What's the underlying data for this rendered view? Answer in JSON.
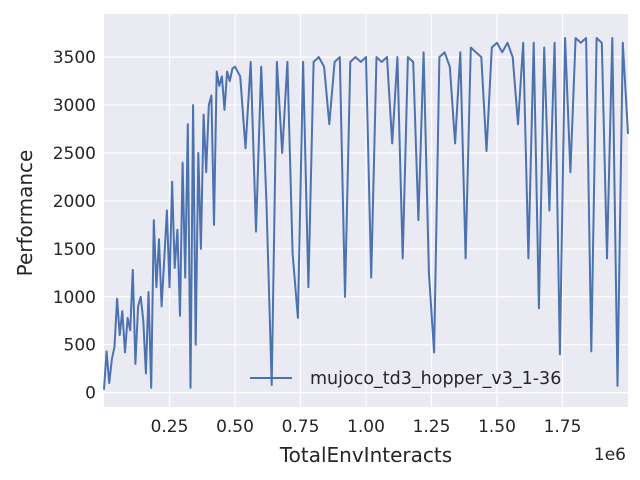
{
  "chart_data": {
    "type": "line",
    "xlabel": "TotalEnvInteracts",
    "ylabel": "Performance",
    "x_offset_text": "1e6",
    "xlim": [
      0,
      2000000
    ],
    "ylim": [
      -150,
      3950
    ],
    "x_ticks": [
      250000,
      500000,
      750000,
      1000000,
      1250000,
      1500000,
      1750000
    ],
    "x_tick_labels": [
      "0.25",
      "0.50",
      "0.75",
      "1.00",
      "1.25",
      "1.50",
      "1.75"
    ],
    "y_ticks": [
      0,
      500,
      1000,
      1500,
      2000,
      2500,
      3000,
      3500
    ],
    "y_tick_labels": [
      "0",
      "500",
      "1000",
      "1500",
      "2000",
      "2500",
      "3000",
      "3500"
    ],
    "grid": true,
    "legend_position": "lower-right",
    "colors": {
      "series": "#4c72b0",
      "plot_bg": "#eaeaf2",
      "grid": "#ffffff"
    },
    "series": [
      {
        "name": "mujoco_td3_hopper_v3_1-36",
        "x": [
          0,
          10000,
          20000,
          30000,
          40000,
          50000,
          60000,
          70000,
          80000,
          90000,
          100000,
          110000,
          120000,
          130000,
          140000,
          150000,
          160000,
          170000,
          180000,
          190000,
          200000,
          210000,
          220000,
          230000,
          240000,
          250000,
          260000,
          270000,
          280000,
          290000,
          300000,
          310000,
          320000,
          330000,
          340000,
          350000,
          360000,
          370000,
          380000,
          390000,
          400000,
          410000,
          420000,
          430000,
          440000,
          450000,
          460000,
          470000,
          480000,
          490000,
          500000,
          520000,
          540000,
          560000,
          580000,
          600000,
          620000,
          640000,
          660000,
          680000,
          700000,
          720000,
          740000,
          760000,
          780000,
          800000,
          820000,
          840000,
          860000,
          880000,
          900000,
          920000,
          940000,
          960000,
          980000,
          1000000,
          1020000,
          1040000,
          1060000,
          1080000,
          1100000,
          1120000,
          1140000,
          1160000,
          1180000,
          1200000,
          1220000,
          1240000,
          1260000,
          1280000,
          1300000,
          1320000,
          1340000,
          1360000,
          1380000,
          1400000,
          1420000,
          1440000,
          1460000,
          1480000,
          1500000,
          1520000,
          1540000,
          1560000,
          1580000,
          1600000,
          1620000,
          1640000,
          1660000,
          1680000,
          1700000,
          1720000,
          1740000,
          1760000,
          1780000,
          1800000,
          1820000,
          1840000,
          1860000,
          1880000,
          1900000,
          1920000,
          1940000,
          1960000,
          1980000,
          2000000
        ],
        "y": [
          30,
          430,
          100,
          350,
          480,
          980,
          600,
          850,
          420,
          780,
          650,
          1280,
          300,
          900,
          1000,
          750,
          200,
          1050,
          50,
          1800,
          1100,
          1600,
          900,
          1400,
          1900,
          1100,
          2200,
          1300,
          1700,
          800,
          2400,
          1200,
          2800,
          50,
          3000,
          500,
          2500,
          1500,
          2900,
          2300,
          3000,
          3100,
          1750,
          3350,
          3200,
          3300,
          2950,
          3350,
          3250,
          3380,
          3400,
          3300,
          2550,
          3450,
          1680,
          3400,
          2000,
          80,
          3450,
          2500,
          3450,
          1450,
          780,
          3450,
          1100,
          3450,
          3500,
          3400,
          2800,
          3450,
          3500,
          1000,
          3450,
          3500,
          3450,
          3500,
          1200,
          3500,
          3450,
          3500,
          2600,
          3500,
          1400,
          3500,
          3450,
          1800,
          3550,
          1250,
          420,
          3500,
          3550,
          3400,
          2600,
          3550,
          1400,
          3600,
          3550,
          3500,
          2520,
          3600,
          3650,
          3550,
          3650,
          3500,
          2800,
          3650,
          1400,
          3650,
          880,
          3600,
          1900,
          3650,
          400,
          3700,
          2300,
          3700,
          3650,
          3700,
          430,
          3700,
          3650,
          1400,
          3700,
          70,
          3650,
          2700
        ]
      }
    ]
  }
}
